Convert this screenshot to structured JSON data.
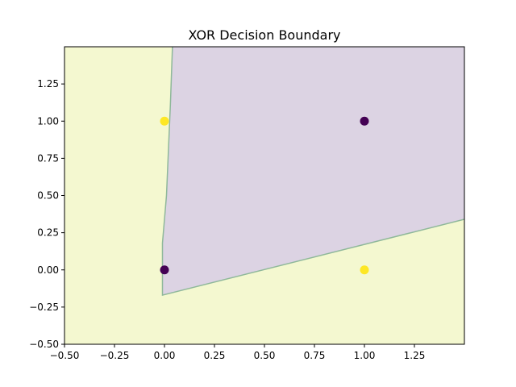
{
  "chart_data": {
    "type": "scatter",
    "title": "XOR Decision Boundary",
    "xlabel": "",
    "ylabel": "",
    "xlim": [
      -0.5,
      1.5
    ],
    "ylim": [
      -0.5,
      1.5
    ],
    "x_ticks": [
      "−0.50",
      "−0.25",
      "0.00",
      "0.25",
      "0.50",
      "0.75",
      "1.00",
      "1.25"
    ],
    "x_tick_values": [
      -0.5,
      -0.25,
      0.0,
      0.25,
      0.5,
      0.75,
      1.0,
      1.25
    ],
    "y_ticks": [
      "−0.50",
      "−0.25",
      "0.00",
      "0.25",
      "0.50",
      "0.75",
      "1.00",
      "1.25"
    ],
    "y_tick_values": [
      -0.5,
      -0.25,
      0.0,
      0.25,
      0.5,
      0.75,
      1.0,
      1.25
    ],
    "grid": false,
    "legend": "none",
    "regions": [
      {
        "class": 0,
        "color": "#dcd3e3",
        "polygon": [
          [
            -0.01,
            -0.17
          ],
          [
            1.5,
            0.34
          ],
          [
            1.5,
            1.5
          ],
          [
            0.04,
            1.5
          ],
          [
            0.03,
            1.12
          ],
          [
            0.01,
            0.5
          ],
          [
            -0.01,
            0.18
          ]
        ]
      },
      {
        "class": 1,
        "color": "#f4f8d0",
        "polygon": "background"
      }
    ],
    "boundary_color": "#8fb89a",
    "points": [
      {
        "x": 0,
        "y": 0,
        "label": 0,
        "color": "#440154"
      },
      {
        "x": 0,
        "y": 1,
        "label": 1,
        "color": "#fde725"
      },
      {
        "x": 1,
        "y": 0,
        "label": 1,
        "color": "#fde725"
      },
      {
        "x": 1,
        "y": 1,
        "label": 0,
        "color": "#440154"
      }
    ]
  }
}
